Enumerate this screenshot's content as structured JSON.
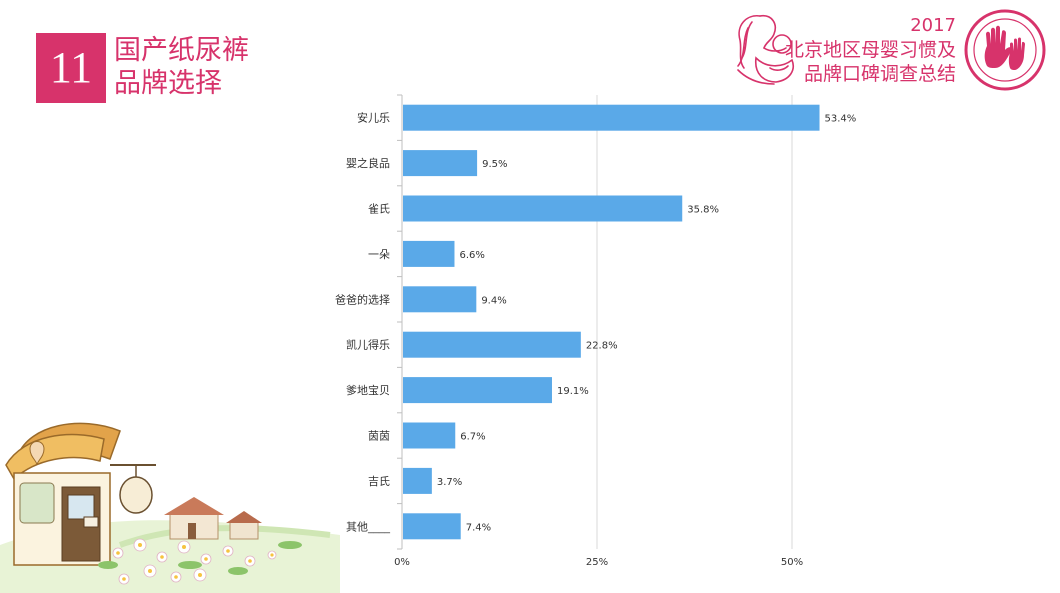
{
  "slide": {
    "number": "11",
    "title_line1": "国产纸尿裤",
    "title_line2": "品牌选择"
  },
  "header": {
    "year": "2017",
    "title_line1": "北京地区母婴习惯及",
    "title_line2": "品牌口碑调查总结"
  },
  "colors": {
    "accent": "#d7336b",
    "bar": "#5aa9e8",
    "gridline": "#d9d9d9",
    "axis": "#bfbfbf"
  },
  "icons": [
    "mother-baby-logo-icon",
    "handprint-seal-icon",
    "cottage-flowers-illustration"
  ],
  "chart_data": {
    "type": "bar",
    "orientation": "horizontal",
    "categories": [
      "安儿乐",
      "婴之良品",
      "雀氏",
      "一朵",
      "爸爸的选择",
      "凯儿得乐",
      "爹地宝贝",
      "茵茵",
      "吉氏",
      "其他____"
    ],
    "values": [
      53.4,
      9.5,
      35.8,
      6.6,
      9.4,
      22.8,
      19.1,
      6.7,
      3.7,
      7.4
    ],
    "value_labels": [
      "53.4%",
      "9.5%",
      "35.8%",
      "6.6%",
      "9.4%",
      "22.8%",
      "19.1%",
      "6.7%",
      "3.7%",
      "7.4%"
    ],
    "xlim": [
      0,
      60
    ],
    "x_ticks": [
      0,
      25,
      50
    ],
    "x_tick_labels": [
      "0%",
      "25%",
      "50%"
    ],
    "grid": true,
    "legend": "none"
  }
}
